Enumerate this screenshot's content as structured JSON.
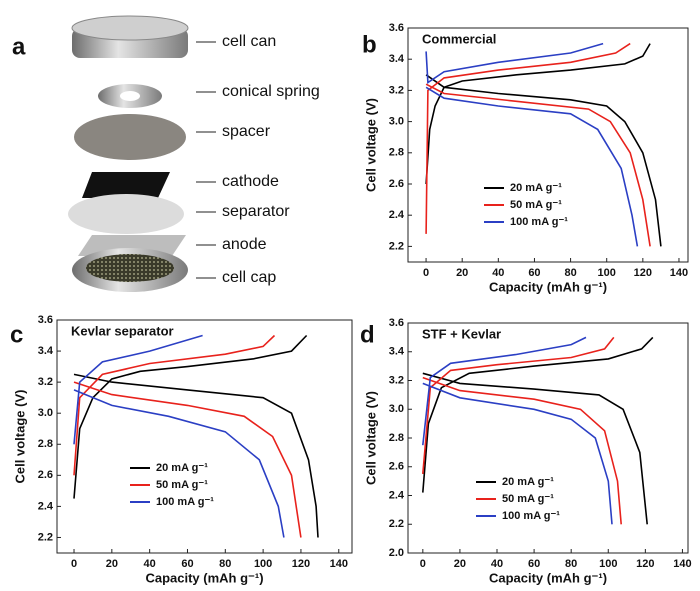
{
  "diagram": {
    "panel_label": "a",
    "parts": [
      "cell can",
      "conical spring",
      "spacer",
      "cathode",
      "separator",
      "anode",
      "cell cap"
    ]
  },
  "chart_data": [
    {
      "type": "line",
      "panel_label": "b",
      "title": "Commercial",
      "xlabel": "Capacity (mAh g⁻¹)",
      "ylabel": "Cell voltage (V)",
      "xlim": [
        -10,
        145
      ],
      "ylim": [
        2.1,
        3.6
      ],
      "xticks": [
        0,
        20,
        40,
        60,
        80,
        100,
        120,
        140
      ],
      "yticks": [
        2.2,
        2.4,
        2.6,
        2.8,
        {
          "value": 3,
          "label": "3.0"
        },
        3.2,
        3.4,
        3.6
      ],
      "series": [
        {
          "name": "20 mA g⁻¹",
          "color": "#000000",
          "charge": {
            "x": [
              0,
              2,
              5,
              10,
              20,
              50,
              80,
              110,
              120,
              124
            ],
            "values": [
              2.6,
              2.95,
              3.1,
              3.22,
              3.26,
              3.3,
              3.33,
              3.37,
              3.42,
              3.5
            ]
          },
          "discharge": {
            "x": [
              0,
              10,
              40,
              80,
              100,
              110,
              120,
              127,
              130
            ],
            "values": [
              3.3,
              3.22,
              3.18,
              3.14,
              3.1,
              3.0,
              2.8,
              2.5,
              2.2
            ]
          }
        },
        {
          "name": "50 mA g⁻¹",
          "color": "#e8221c",
          "charge": {
            "x": [
              0,
              1,
              10,
              40,
              80,
              105,
              113
            ],
            "values": [
              2.28,
              3.2,
              3.28,
              3.33,
              3.38,
              3.44,
              3.5
            ]
          },
          "discharge": {
            "x": [
              0,
              10,
              50,
              90,
              102,
              113,
              120,
              124
            ],
            "values": [
              3.24,
              3.18,
              3.13,
              3.08,
              3.0,
              2.8,
              2.5,
              2.2
            ]
          }
        },
        {
          "name": "100 mA g⁻¹",
          "color": "#2b3fc4",
          "charge": {
            "x": [
              0,
              1,
              10,
              40,
              80,
              98
            ],
            "values": [
              3.45,
              3.25,
              3.32,
              3.38,
              3.44,
              3.5
            ]
          },
          "discharge": {
            "x": [
              0,
              10,
              40,
              80,
              95,
              108,
              114,
              117
            ],
            "values": [
              3.22,
              3.15,
              3.1,
              3.05,
              2.95,
              2.7,
              2.4,
              2.2
            ]
          }
        }
      ]
    },
    {
      "type": "line",
      "panel_label": "c",
      "title": "Kevlar separator",
      "xlabel": "Capacity (mAh g⁻¹)",
      "ylabel": "Cell voltage (V)",
      "xlim": [
        -9,
        147
      ],
      "ylim": [
        2.1,
        3.6
      ],
      "xticks": [
        0,
        20,
        40,
        60,
        80,
        100,
        120,
        140
      ],
      "yticks": [
        2.2,
        2.4,
        2.6,
        2.8,
        {
          "value": 3,
          "label": "3.0"
        },
        3.2,
        3.4,
        3.6
      ],
      "series": [
        {
          "name": "20 mA g⁻¹",
          "color": "#000000",
          "charge": {
            "x": [
              0,
              3,
              10,
              20,
              35,
              60,
              95,
              115,
              123
            ],
            "values": [
              2.45,
              2.9,
              3.1,
              3.22,
              3.27,
              3.3,
              3.35,
              3.4,
              3.5
            ]
          },
          "discharge": {
            "x": [
              0,
              20,
              60,
              100,
              115,
              124,
              128,
              129
            ],
            "values": [
              3.25,
              3.2,
              3.15,
              3.1,
              3.0,
              2.7,
              2.4,
              2.2
            ]
          }
        },
        {
          "name": "50 mA g⁻¹",
          "color": "#e8221c",
          "charge": {
            "x": [
              0,
              3,
              15,
              40,
              80,
              100,
              106
            ],
            "values": [
              2.6,
              3.1,
              3.25,
              3.32,
              3.38,
              3.43,
              3.5
            ]
          },
          "discharge": {
            "x": [
              0,
              20,
              60,
              90,
              105,
              115,
              120
            ],
            "values": [
              3.2,
              3.12,
              3.05,
              2.98,
              2.85,
              2.6,
              2.2
            ]
          }
        },
        {
          "name": "100 mA g⁻¹",
          "color": "#2b3fc4",
          "charge": {
            "x": [
              0,
              3,
              15,
              40,
              68
            ],
            "values": [
              2.8,
              3.2,
              3.33,
              3.4,
              3.5
            ]
          },
          "discharge": {
            "x": [
              0,
              20,
              50,
              80,
              98,
              108,
              111
            ],
            "values": [
              3.15,
              3.05,
              2.98,
              2.88,
              2.7,
              2.4,
              2.2
            ]
          }
        }
      ]
    },
    {
      "type": "line",
      "panel_label": "d",
      "title": "STF + Kevlar",
      "xlabel": "Capacity (mAh g⁻¹)",
      "ylabel": "Cell voltage (V)",
      "xlim": [
        -8,
        143
      ],
      "ylim": [
        2,
        3.6
      ],
      "xticks": [
        0,
        20,
        40,
        60,
        80,
        100,
        120,
        140
      ],
      "yticks": [
        {
          "value": 2,
          "label": "2.0"
        },
        2.2,
        2.4,
        2.6,
        2.8,
        {
          "value": 3,
          "label": "3.0"
        },
        3.2,
        3.4,
        3.6
      ],
      "series": [
        {
          "name": "20 mA g⁻¹",
          "color": "#000000",
          "charge": {
            "x": [
              0,
              3,
              10,
              25,
              60,
              100,
              118,
              124
            ],
            "values": [
              2.42,
              2.9,
              3.15,
              3.25,
              3.3,
              3.35,
              3.42,
              3.5
            ]
          },
          "discharge": {
            "x": [
              0,
              20,
              60,
              95,
              108,
              117,
              121
            ],
            "values": [
              3.25,
              3.18,
              3.14,
              3.1,
              3.0,
              2.7,
              2.2
            ]
          }
        },
        {
          "name": "50 mA g⁻¹",
          "color": "#e8221c",
          "charge": {
            "x": [
              0,
              4,
              15,
              40,
              80,
              98,
              103
            ],
            "values": [
              2.55,
              3.15,
              3.27,
              3.31,
              3.36,
              3.42,
              3.5
            ]
          },
          "discharge": {
            "x": [
              0,
              20,
              60,
              85,
              98,
              105,
              107
            ],
            "values": [
              3.22,
              3.13,
              3.07,
              3.0,
              2.85,
              2.5,
              2.2
            ]
          }
        },
        {
          "name": "100 mA g⁻¹",
          "color": "#2b3fc4",
          "charge": {
            "x": [
              0,
              4,
              15,
              50,
              80,
              88
            ],
            "values": [
              2.75,
              3.22,
              3.32,
              3.38,
              3.45,
              3.5
            ]
          },
          "discharge": {
            "x": [
              0,
              20,
              60,
              80,
              93,
              100,
              102
            ],
            "values": [
              3.18,
              3.08,
              3.0,
              2.93,
              2.8,
              2.5,
              2.2
            ]
          }
        }
      ]
    }
  ]
}
